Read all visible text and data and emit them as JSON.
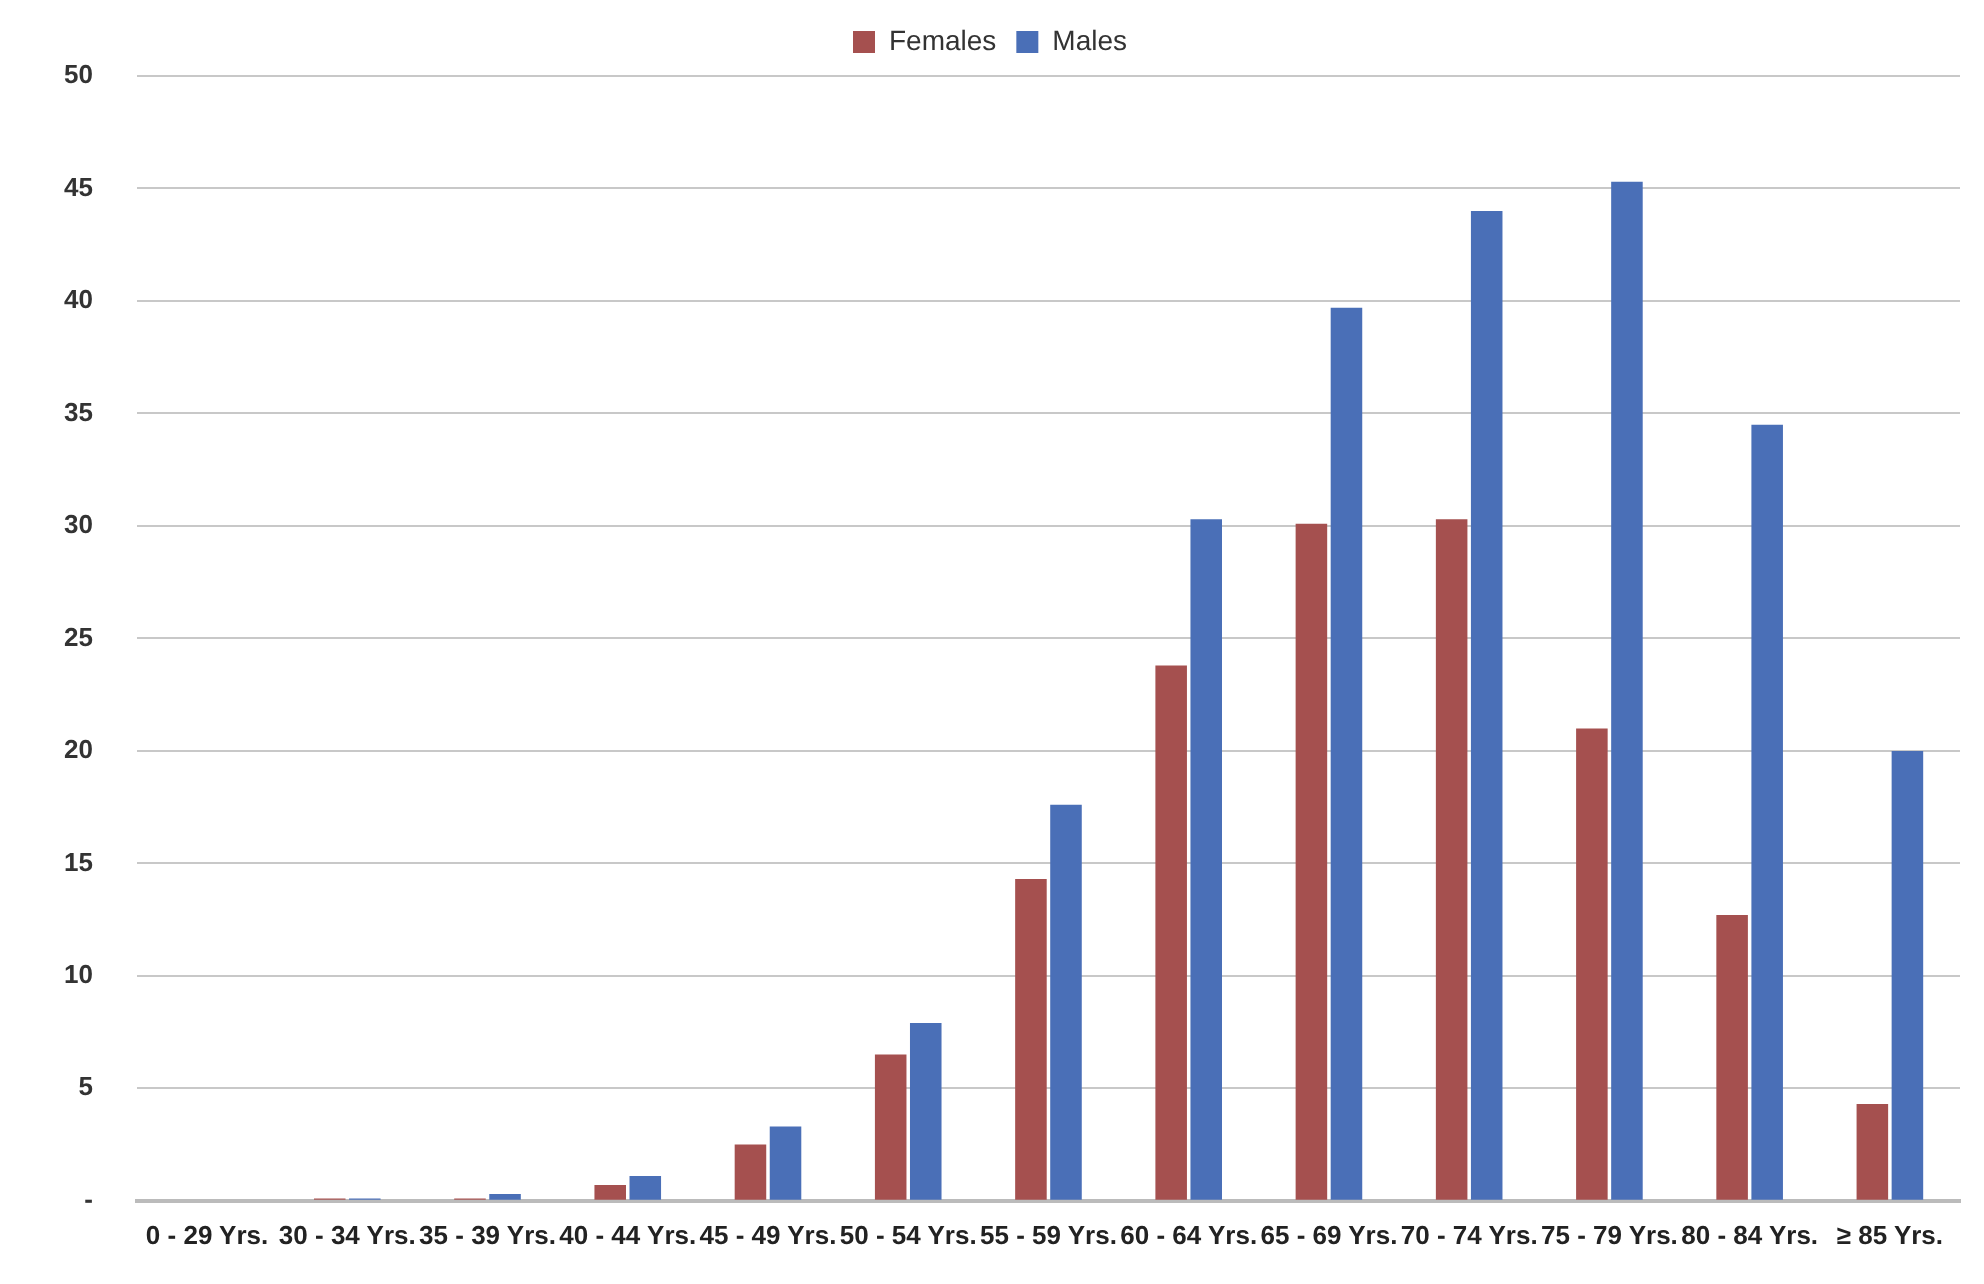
{
  "chart_data": {
    "type": "bar",
    "categories": [
      "0 - 29 Yrs.",
      "30 - 34 Yrs.",
      "35 - 39 Yrs.",
      "40 - 44 Yrs.",
      "45 - 49 Yrs.",
      "50 - 54 Yrs.",
      "55 - 59 Yrs.",
      "60 - 64 Yrs.",
      "65 - 69 Yrs.",
      "70 - 74 Yrs.",
      "75 - 79 Yrs.",
      "80 - 84 Yrs.",
      "≥ 85 Yrs."
    ],
    "series": [
      {
        "name": "Females",
        "color": "#a5504f",
        "values": [
          0,
          0.1,
          0.1,
          0.7,
          2.5,
          6.5,
          14.3,
          23.8,
          30.1,
          30.3,
          21.0,
          12.7,
          4.3
        ]
      },
      {
        "name": "Males",
        "color": "#4a6fb7",
        "values": [
          0,
          0.1,
          0.3,
          1.1,
          3.3,
          7.9,
          17.6,
          30.3,
          39.7,
          44.0,
          45.3,
          34.5,
          20.0
        ]
      }
    ],
    "ylim": [
      0,
      50
    ],
    "yticks": [
      {
        "value": 0,
        "label": "-"
      },
      5,
      10,
      15,
      20,
      25,
      30,
      35,
      40,
      45,
      50
    ],
    "grid": "y",
    "legend": "top"
  }
}
